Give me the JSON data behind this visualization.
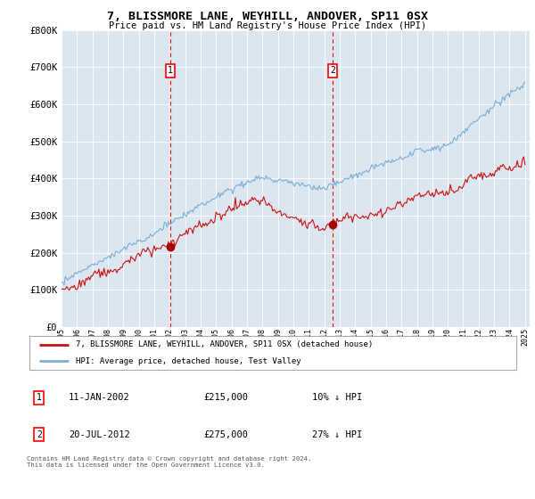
{
  "title": "7, BLISSMORE LANE, WEYHILL, ANDOVER, SP11 0SX",
  "subtitle": "Price paid vs. HM Land Registry's House Price Index (HPI)",
  "plot_bg_color": "#dce6f1",
  "red_line_label": "7, BLISSMORE LANE, WEYHILL, ANDOVER, SP11 0SX (detached house)",
  "blue_line_label": "HPI: Average price, detached house, Test Valley",
  "annotation1_date": "11-JAN-2002",
  "annotation1_price": "£215,000",
  "annotation1_hpi": "10% ↓ HPI",
  "annotation2_date": "20-JUL-2012",
  "annotation2_price": "£275,000",
  "annotation2_hpi": "27% ↓ HPI",
  "footer": "Contains HM Land Registry data © Crown copyright and database right 2024.\nThis data is licensed under the Open Government Licence v3.0.",
  "ylim": [
    0,
    800000
  ],
  "yticks": [
    0,
    100000,
    200000,
    300000,
    400000,
    500000,
    600000,
    700000,
    800000
  ],
  "sale1_year": 2002.04,
  "sale1_price": 215000,
  "sale2_year": 2012.55,
  "sale2_price": 275000
}
